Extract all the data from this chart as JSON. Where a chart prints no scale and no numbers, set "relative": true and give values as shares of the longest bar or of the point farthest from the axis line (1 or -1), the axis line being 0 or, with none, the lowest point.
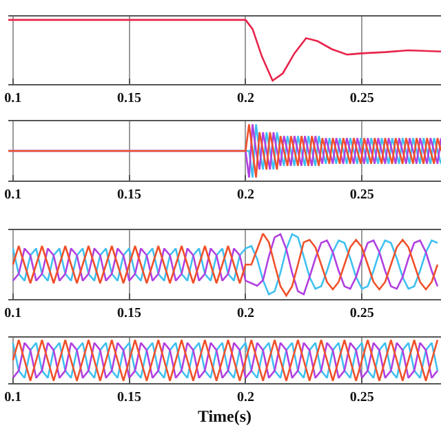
{
  "chart_data": [
    {
      "type": "line",
      "relative": true,
      "grid": "x",
      "tick_labels": "x",
      "xlim": [
        0.098,
        0.284
      ],
      "xticks": [
        0.1,
        0.15,
        0.2,
        0.25
      ],
      "x": [
        0.098,
        0.2,
        0.203,
        0.207,
        0.2116,
        0.216,
        0.221,
        0.226,
        0.231,
        0.237,
        0.2436,
        0.25,
        0.26,
        0.27,
        0.284
      ],
      "series": [
        {
          "color": "#e8234a",
          "values": [
            1,
            1,
            0.85,
            0.4,
            0,
            0.12,
            0.45,
            0.7,
            0.65,
            0.52,
            0.43,
            0.45,
            0.47,
            0.5,
            0.48
          ]
        }
      ]
    },
    {
      "type": "line",
      "relative": true,
      "grid": "x",
      "tick_labels": "x",
      "xlim": [
        0.098,
        0.284
      ],
      "xticks": [
        0.1,
        0.15,
        0.2,
        0.25
      ],
      "x": [
        0.098,
        0.2,
        0.2015,
        0.203,
        0.2045,
        0.206,
        0.2075,
        0.209,
        0.2105,
        0.212,
        0.2135,
        0.215,
        0.2165,
        0.218,
        0.2195,
        0.221,
        0.2225,
        0.224,
        0.2255,
        0.227,
        0.2285,
        0.23,
        0.2315,
        0.233,
        0.2345,
        0.236,
        0.2375,
        0.239,
        0.2405,
        0.242,
        0.2435,
        0.245,
        0.2465,
        0.248,
        0.2495,
        0.251,
        0.2525,
        0.254,
        0.2555,
        0.257,
        0.2585,
        0.26,
        0.2615,
        0.263,
        0.2645,
        0.266,
        0.2675,
        0.269,
        0.2705,
        0.272,
        0.2735,
        0.275,
        0.2765,
        0.278,
        0.2795,
        0.281,
        0.2825,
        0.284
      ],
      "series": [
        {
          "color": "#40c0f0",
          "values": [
            0.5,
            0.5,
            0.5,
            0,
            1,
            0.5,
            0.15,
            0.85,
            0.5,
            0.15,
            0.85,
            0.5,
            0.22,
            0.78,
            0.5,
            0.22,
            0.78,
            0.5,
            0.22,
            0.78,
            0.5,
            0.22,
            0.78,
            0.5,
            0.26,
            0.74,
            0.5,
            0.26,
            0.74,
            0.5,
            0.26,
            0.74,
            0.5,
            0.26,
            0.74,
            0.5,
            0.26,
            0.74,
            0.5,
            0.26,
            0.74,
            0.5,
            0.26,
            0.74,
            0.5,
            0.26,
            0.74,
            0.5,
            0.26,
            0.74,
            0.5,
            0.26,
            0.74,
            0.5,
            0.26,
            0.74,
            0.5,
            0.26
          ]
        },
        {
          "color": "#b040e0",
          "values": [
            0.5,
            0.5,
            0,
            1,
            0.5,
            0.15,
            0.85,
            0.5,
            0.15,
            0.85,
            0.5,
            0.22,
            0.78,
            0.5,
            0.22,
            0.78,
            0.5,
            0.22,
            0.78,
            0.5,
            0.22,
            0.78,
            0.5,
            0.26,
            0.74,
            0.5,
            0.26,
            0.74,
            0.5,
            0.26,
            0.74,
            0.5,
            0.26,
            0.74,
            0.5,
            0.26,
            0.74,
            0.5,
            0.26,
            0.74,
            0.5,
            0.26,
            0.74,
            0.5,
            0.26,
            0.74,
            0.5,
            0.26,
            0.74,
            0.5,
            0.26,
            0.74,
            0.5,
            0.26,
            0.74,
            0.5,
            0.26,
            0.74
          ]
        },
        {
          "color": "#f0502a",
          "values": [
            0.5,
            0.5,
            1,
            0.5,
            0,
            0.85,
            0.5,
            0.15,
            0.85,
            0.5,
            0.15,
            0.78,
            0.5,
            0.22,
            0.78,
            0.5,
            0.22,
            0.78,
            0.5,
            0.22,
            0.78,
            0.5,
            0.22,
            0.74,
            0.5,
            0.26,
            0.74,
            0.5,
            0.26,
            0.74,
            0.5,
            0.26,
            0.74,
            0.5,
            0.26,
            0.74,
            0.5,
            0.26,
            0.74,
            0.5,
            0.26,
            0.74,
            0.5,
            0.26,
            0.74,
            0.5,
            0.26,
            0.74,
            0.5,
            0.26,
            0.74,
            0.5,
            0.26,
            0.74,
            0.5,
            0.26,
            0.74,
            0.5
          ]
        }
      ]
    },
    {
      "type": "line",
      "relative": true,
      "grid": "x",
      "tick_labels": "x",
      "xlim": [
        0.098,
        0.284
      ],
      "xticks": [
        0.1,
        0.15,
        0.2,
        0.25
      ],
      "x": [
        0.1,
        0.1025,
        0.105,
        0.1075,
        0.11,
        0.1125,
        0.115,
        0.1175,
        0.12,
        0.1225,
        0.125,
        0.1275,
        0.13,
        0.1325,
        0.135,
        0.1375,
        0.14,
        0.1425,
        0.145,
        0.1475,
        0.15,
        0.1525,
        0.155,
        0.1575,
        0.16,
        0.1625,
        0.165,
        0.1675,
        0.17,
        0.1725,
        0.175,
        0.1775,
        0.18,
        0.1825,
        0.185,
        0.1875,
        0.19,
        0.1925,
        0.195,
        0.1975,
        0.2,
        0.2025,
        0.205,
        0.2075,
        0.21,
        0.2125,
        0.215,
        0.2175,
        0.22,
        0.2225,
        0.225,
        0.2275,
        0.23,
        0.2325,
        0.235,
        0.2375,
        0.24,
        0.2425,
        0.245,
        0.2475,
        0.25,
        0.2525,
        0.255,
        0.2575,
        0.26,
        0.2625,
        0.265,
        0.2675,
        0.27,
        0.2725,
        0.275,
        0.2775,
        0.28,
        0.2825
      ],
      "series": [
        {
          "color": "#40c0f0",
          "values": [
            0.76,
            0.35,
            0.24,
            0.65,
            0.76,
            0.35,
            0.24,
            0.65,
            0.76,
            0.35,
            0.24,
            0.65,
            0.76,
            0.35,
            0.24,
            0.65,
            0.76,
            0.35,
            0.24,
            0.65,
            0.76,
            0.35,
            0.24,
            0.65,
            0.76,
            0.35,
            0.24,
            0.65,
            0.76,
            0.35,
            0.24,
            0.65,
            0.76,
            0.35,
            0.24,
            0.65,
            0.76,
            0.35,
            0.24,
            0.65,
            0.76,
            0.8,
            0.59,
            0.25,
            0.02,
            0.07,
            0.37,
            0.75,
            0.99,
            0.94,
            0.63,
            0.3,
            0.11,
            0.15,
            0.4,
            0.7,
            0.89,
            0.85,
            0.6,
            0.3,
            0.11,
            0.15,
            0.4,
            0.7,
            0.89,
            0.85,
            0.6,
            0.3,
            0.11,
            0.15,
            0.4,
            0.7,
            0.89,
            0.85
          ]
        },
        {
          "color": "#b040e0",
          "values": [
            0.24,
            0.35,
            0.76,
            0.65,
            0.24,
            0.35,
            0.76,
            0.65,
            0.24,
            0.35,
            0.76,
            0.65,
            0.24,
            0.35,
            0.76,
            0.65,
            0.24,
            0.35,
            0.76,
            0.65,
            0.24,
            0.35,
            0.76,
            0.65,
            0.24,
            0.35,
            0.76,
            0.65,
            0.24,
            0.35,
            0.76,
            0.65,
            0.24,
            0.35,
            0.76,
            0.65,
            0.24,
            0.35,
            0.76,
            0.65,
            0.24,
            0.2,
            0.16,
            0.25,
            0.63,
            0.94,
            0.99,
            0.75,
            0.37,
            0.07,
            0.02,
            0.3,
            0.6,
            0.85,
            0.89,
            0.7,
            0.4,
            0.15,
            0.11,
            0.3,
            0.6,
            0.85,
            0.89,
            0.7,
            0.4,
            0.15,
            0.11,
            0.3,
            0.6,
            0.85,
            0.89,
            0.7,
            0.4,
            0.15
          ]
        },
        {
          "color": "#f0502a",
          "values": [
            0.5,
            0.8,
            0.5,
            0.2,
            0.5,
            0.8,
            0.5,
            0.2,
            0.5,
            0.8,
            0.5,
            0.2,
            0.5,
            0.8,
            0.5,
            0.2,
            0.5,
            0.8,
            0.5,
            0.2,
            0.5,
            0.8,
            0.5,
            0.2,
            0.5,
            0.8,
            0.5,
            0.2,
            0.5,
            0.8,
            0.5,
            0.2,
            0.5,
            0.8,
            0.5,
            0.2,
            0.5,
            0.8,
            0.5,
            0.2,
            0.5,
            0.5,
            0.75,
            1,
            0.86,
            0.5,
            0.15,
            0,
            0.15,
            0.5,
            0.86,
            0.9,
            0.78,
            0.5,
            0.22,
            0.1,
            0.22,
            0.5,
            0.78,
            0.9,
            0.78,
            0.5,
            0.22,
            0.1,
            0.22,
            0.5,
            0.78,
            0.9,
            0.78,
            0.5,
            0.22,
            0.1,
            0.22,
            0.5
          ]
        }
      ]
    },
    {
      "type": "line",
      "relative": true,
      "grid": "x",
      "tick_labels": "x",
      "xlim": [
        0.098,
        0.284
      ],
      "xticks": [
        0.1,
        0.15,
        0.2,
        0.25
      ],
      "xlabel": "Time(s)",
      "x": [
        0.1,
        0.1025,
        0.105,
        0.1075,
        0.11,
        0.1125,
        0.115,
        0.1175,
        0.12,
        0.1225,
        0.125,
        0.1275,
        0.13,
        0.1325,
        0.135,
        0.1375,
        0.14,
        0.1425,
        0.145,
        0.1475,
        0.15,
        0.1525,
        0.155,
        0.1575,
        0.16,
        0.1625,
        0.165,
        0.1675,
        0.17,
        0.1725,
        0.175,
        0.1775,
        0.18,
        0.1825,
        0.185,
        0.1875,
        0.19,
        0.1925,
        0.195,
        0.1975,
        0.2,
        0.2025,
        0.205,
        0.2075,
        0.21,
        0.2125,
        0.215,
        0.2175,
        0.22,
        0.2225,
        0.225,
        0.2275,
        0.23,
        0.2325,
        0.235,
        0.2375,
        0.24,
        0.2425,
        0.245,
        0.2475,
        0.25,
        0.2525,
        0.255,
        0.2575,
        0.26,
        0.2625,
        0.265,
        0.2675,
        0.27,
        0.2725,
        0.275,
        0.2775,
        0.28,
        0.2825
      ],
      "series": [
        {
          "color": "#40c0f0",
          "values": [
            0.93,
            0.25,
            0.07,
            0.75,
            0.93,
            0.25,
            0.07,
            0.75,
            0.93,
            0.25,
            0.07,
            0.75,
            0.93,
            0.25,
            0.07,
            0.75,
            0.93,
            0.25,
            0.07,
            0.75,
            0.93,
            0.25,
            0.07,
            0.75,
            0.93,
            0.25,
            0.07,
            0.75,
            0.93,
            0.25,
            0.07,
            0.75,
            0.93,
            0.25,
            0.07,
            0.75,
            0.93,
            0.25,
            0.07,
            0.75,
            0.93,
            0.25,
            0.07,
            0.75,
            0.93,
            0.25,
            0.07,
            0.75,
            0.93,
            0.25,
            0.07,
            0.75,
            0.93,
            0.25,
            0.07,
            0.75,
            0.93,
            0.25,
            0.07,
            0.75,
            0.93,
            0.25,
            0.07,
            0.75,
            0.93,
            0.25,
            0.07,
            0.75,
            0.93,
            0.25,
            0.07,
            0.75,
            0.93,
            0.25
          ]
        },
        {
          "color": "#b040e0",
          "values": [
            0.07,
            0.25,
            0.93,
            0.75,
            0.07,
            0.25,
            0.93,
            0.75,
            0.07,
            0.25,
            0.93,
            0.75,
            0.07,
            0.25,
            0.93,
            0.75,
            0.07,
            0.25,
            0.93,
            0.75,
            0.07,
            0.25,
            0.93,
            0.75,
            0.07,
            0.25,
            0.93,
            0.75,
            0.07,
            0.25,
            0.93,
            0.75,
            0.07,
            0.25,
            0.93,
            0.75,
            0.07,
            0.25,
            0.93,
            0.75,
            0.07,
            0.25,
            0.93,
            0.75,
            0.07,
            0.25,
            0.93,
            0.75,
            0.07,
            0.25,
            0.93,
            0.75,
            0.07,
            0.25,
            0.93,
            0.75,
            0.07,
            0.25,
            0.93,
            0.75,
            0.07,
            0.25,
            0.93,
            0.75,
            0.07,
            0.25,
            0.93,
            0.75,
            0.07,
            0.25,
            0.93,
            0.75,
            0.07,
            0.25
          ]
        },
        {
          "color": "#f0502a",
          "values": [
            0.5,
            1,
            0.5,
            0,
            0.5,
            1,
            0.5,
            0,
            0.5,
            1,
            0.5,
            0,
            0.5,
            1,
            0.5,
            0,
            0.5,
            1,
            0.5,
            0,
            0.5,
            1,
            0.5,
            0,
            0.5,
            1,
            0.5,
            0,
            0.5,
            1,
            0.5,
            0,
            0.5,
            1,
            0.5,
            0,
            0.5,
            1,
            0.5,
            0,
            0.5,
            1,
            0.5,
            0,
            0.5,
            1,
            0.5,
            0,
            0.5,
            1,
            0.5,
            0,
            0.5,
            1,
            0.5,
            0,
            0.5,
            1,
            0.5,
            0,
            0.5,
            1,
            0.5,
            0,
            0.5,
            1,
            0.5,
            0,
            0.5,
            1,
            0.5,
            0,
            0.5,
            1
          ]
        }
      ]
    }
  ]
}
